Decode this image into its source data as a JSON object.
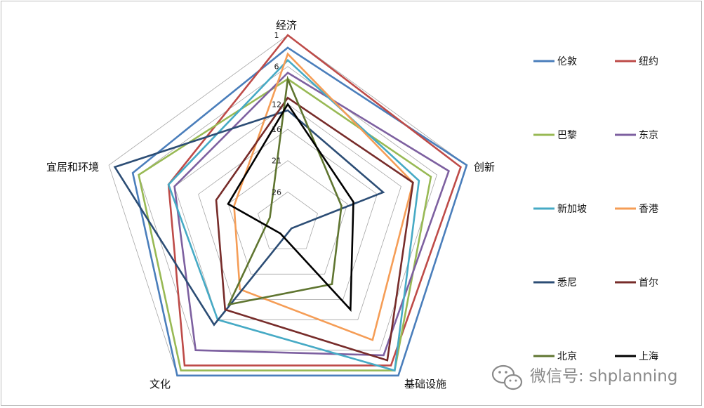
{
  "chart_data": {
    "type": "radar",
    "axes": [
      "经济",
      "创新",
      "基础设施",
      "文化",
      "宜居和环境"
    ],
    "rank_ticks": [
      "1",
      "6",
      "12",
      "16",
      "21",
      "26"
    ],
    "scale_note": "rank axis, 1 at outer edge, 31 at center",
    "grid": true,
    "legend_position": "right",
    "series": [
      {
        "name": "伦敦",
        "color": "#4a7ebb",
        "values": [
          3,
          1,
          1,
          1,
          5
        ]
      },
      {
        "name": "纽约",
        "color": "#be4b48",
        "values": [
          1,
          2,
          3,
          3,
          11
        ]
      },
      {
        "name": "巴黎",
        "color": "#98b954",
        "values": [
          8,
          7,
          2,
          2,
          6
        ]
      },
      {
        "name": "东京",
        "color": "#7d60a0",
        "values": [
          7,
          4,
          5,
          6,
          12
        ]
      },
      {
        "name": "新加坡",
        "color": "#46aac5",
        "values": [
          5,
          9,
          2,
          12,
          11
        ]
      },
      {
        "name": "香港",
        "color": "#f59d56",
        "values": [
          4,
          10,
          8,
          18,
          22
        ]
      },
      {
        "name": "悉尼",
        "color": "#2c4d75",
        "values": [
          13,
          15,
          30,
          11,
          2
        ]
      },
      {
        "name": "首尔",
        "color": "#772c2a",
        "values": [
          11,
          10,
          4,
          14,
          19
        ]
      },
      {
        "name": "北京",
        "color": "#5f7530",
        "values": [
          8,
          22,
          19,
          15,
          28
        ]
      },
      {
        "name": "上海",
        "color": "#000000",
        "values": [
          12,
          20,
          14,
          29,
          21
        ]
      }
    ]
  },
  "watermark": {
    "text": "微信号: shplanning",
    "icon": "wechat-icon"
  }
}
